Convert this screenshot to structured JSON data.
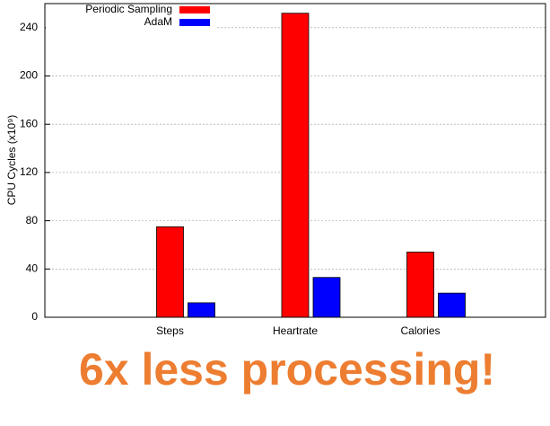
{
  "chart_data": {
    "type": "bar",
    "categories": [
      "Steps",
      "Heartrate",
      "Calories"
    ],
    "series": [
      {
        "name": "Periodic Sampling",
        "color": "#ff0000",
        "values": [
          75,
          252,
          54
        ]
      },
      {
        "name": "AdaM",
        "color": "#0000ff",
        "values": [
          12,
          33,
          20
        ]
      }
    ],
    "ylabel": "CPU Cycles (x10⁹)",
    "ylim": [
      0,
      260
    ],
    "yticks": [
      0,
      40,
      80,
      120,
      160,
      200,
      240
    ],
    "grid": true,
    "legend": "top-left",
    "annotation": "6x less processing!"
  }
}
